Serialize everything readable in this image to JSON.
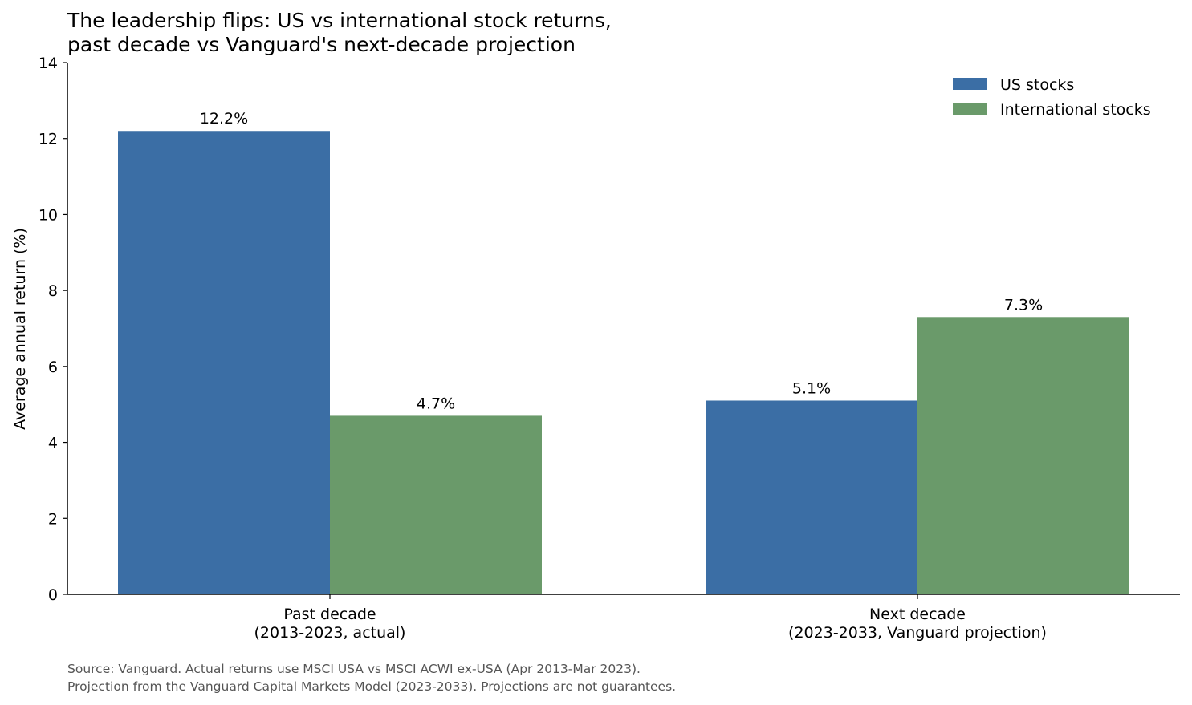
{
  "chart_data": {
    "type": "bar",
    "title_lines": [
      "The leadership flips: US vs international stock returns,",
      "past decade vs Vanguard's next-decade projection"
    ],
    "categories": [
      [
        "Past decade",
        "(2013-2023, actual)"
      ],
      [
        "Next decade",
        "(2023-2033, Vanguard projection)"
      ]
    ],
    "series": [
      {
        "name": "US stocks",
        "color": "#3b6ea5",
        "values": [
          12.2,
          5.1
        ],
        "labels": [
          "12.2%",
          "5.1%"
        ]
      },
      {
        "name": "International stocks",
        "color": "#6a9a6a",
        "values": [
          4.7,
          7.3
        ],
        "labels": [
          "4.7%",
          "7.3%"
        ]
      }
    ],
    "ylabel": "Average annual return (%)",
    "ylim": [
      0,
      14
    ],
    "yticks": [
      0,
      2,
      4,
      6,
      8,
      10,
      12,
      14
    ],
    "grid": false,
    "legend_position": "top-right",
    "source_lines": [
      "Source: Vanguard. Actual returns use MSCI USA vs MSCI ACWI ex-USA (Apr 2013-Mar 2023).",
      "Projection from the Vanguard Capital Markets Model (2023-2033). Projections are not guarantees."
    ]
  }
}
